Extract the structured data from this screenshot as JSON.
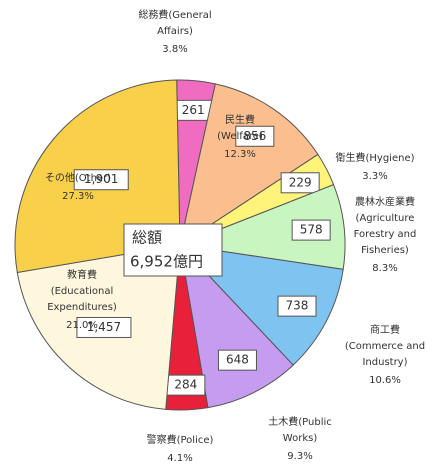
{
  "chart_data": {
    "type": "pie",
    "categories": [
      [
        "総務費(General",
        "Affairs)"
      ],
      [
        "民生費",
        "(Welfare)"
      ],
      [
        "衛生費(Hygiene)"
      ],
      [
        "農林水産業費",
        "(Agriculture",
        "Forestry and",
        "Fisheries)"
      ],
      [
        "商工費",
        "(Commerce and",
        "Industry)"
      ],
      [
        "土木費(Public",
        "Works)"
      ],
      [
        "警察費(Police)"
      ],
      [
        "教育費",
        "(Educational",
        "Expenditures)"
      ],
      [
        "その他(Other)"
      ]
    ],
    "values": [
      261,
      856,
      229,
      578,
      738,
      648,
      284,
      1457,
      1901
    ],
    "value_labels": [
      "261",
      "856",
      "229",
      "578",
      "738",
      "648",
      "284",
      "1,457",
      "1,901"
    ],
    "percent_labels": [
      "3.8%",
      "12.3%",
      "3.3%",
      "8.3%",
      "10.6%",
      "9.3%",
      "4.1%",
      "21.0%",
      "27.3%"
    ],
    "colors": [
      "#f06cc0",
      "#fbbf8f",
      "#fff47a",
      "#c8f5c0",
      "#7fc4f0",
      "#c59cf0",
      "#e8203a",
      "#fff6de",
      "#f9d04a"
    ],
    "total_label": [
      "総額",
      "6,952億円"
    ]
  }
}
